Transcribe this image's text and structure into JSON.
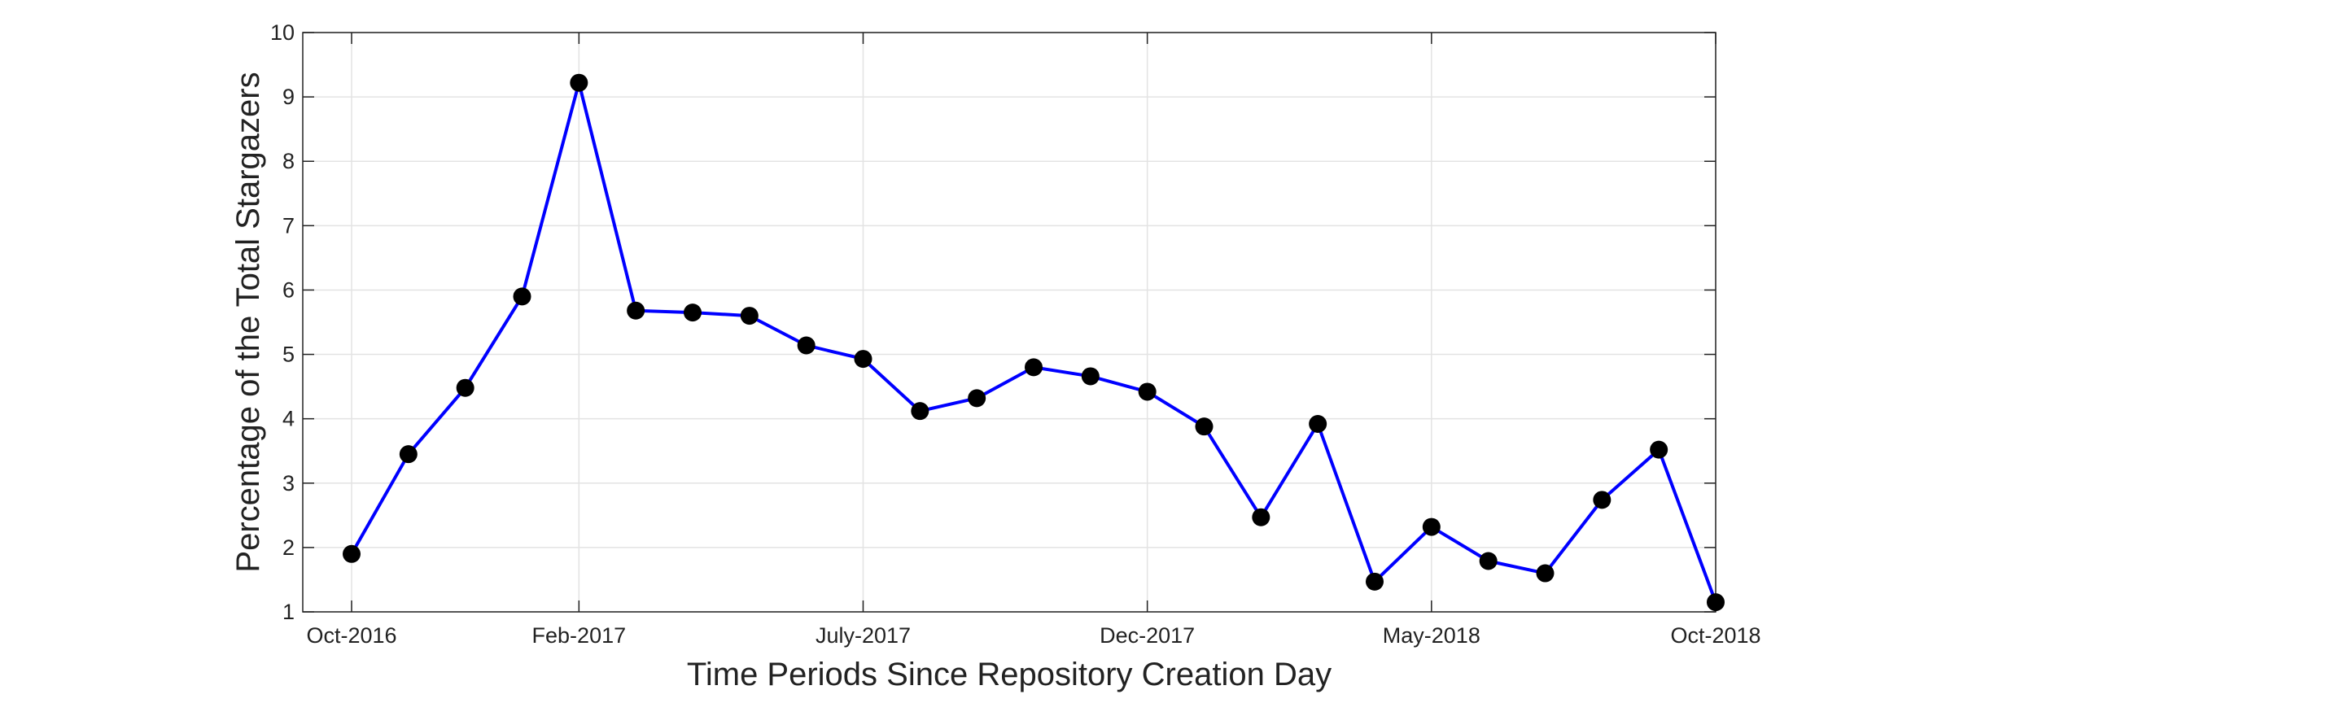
{
  "chart_data": {
    "type": "line",
    "title": "",
    "xlabel": "Time Periods Since Repository Creation Day",
    "ylabel": "Percentage of the Total Stargazers",
    "ylim": [
      1,
      10
    ],
    "xlim": [
      0,
      24
    ],
    "yticks": [
      1,
      2,
      3,
      4,
      5,
      6,
      7,
      8,
      9,
      10
    ],
    "xticks": [
      {
        "x": 0,
        "label": "Oct-2016"
      },
      {
        "x": 4,
        "label": "Feb-2017"
      },
      {
        "x": 9,
        "label": "July-2017"
      },
      {
        "x": 14,
        "label": "Dec-2017"
      },
      {
        "x": 19,
        "label": "May-2018"
      },
      {
        "x": 24,
        "label": "Oct-2018"
      }
    ],
    "grid": true,
    "colors": {
      "line": "#0000ff",
      "marker": "#000000"
    },
    "series": [
      {
        "x": [
          0,
          1,
          2,
          3,
          4,
          5,
          6,
          7,
          8,
          9,
          10,
          11,
          12,
          13,
          14,
          15,
          16,
          17,
          18,
          19,
          20,
          21,
          22,
          23,
          24
        ],
        "values": [
          1.9,
          3.45,
          4.48,
          5.9,
          9.22,
          5.68,
          5.65,
          5.6,
          5.14,
          4.93,
          4.12,
          4.32,
          4.8,
          4.66,
          4.42,
          3.88,
          2.47,
          3.92,
          1.47,
          2.32,
          1.79,
          1.6,
          2.74,
          3.52,
          1.15
        ]
      }
    ]
  }
}
